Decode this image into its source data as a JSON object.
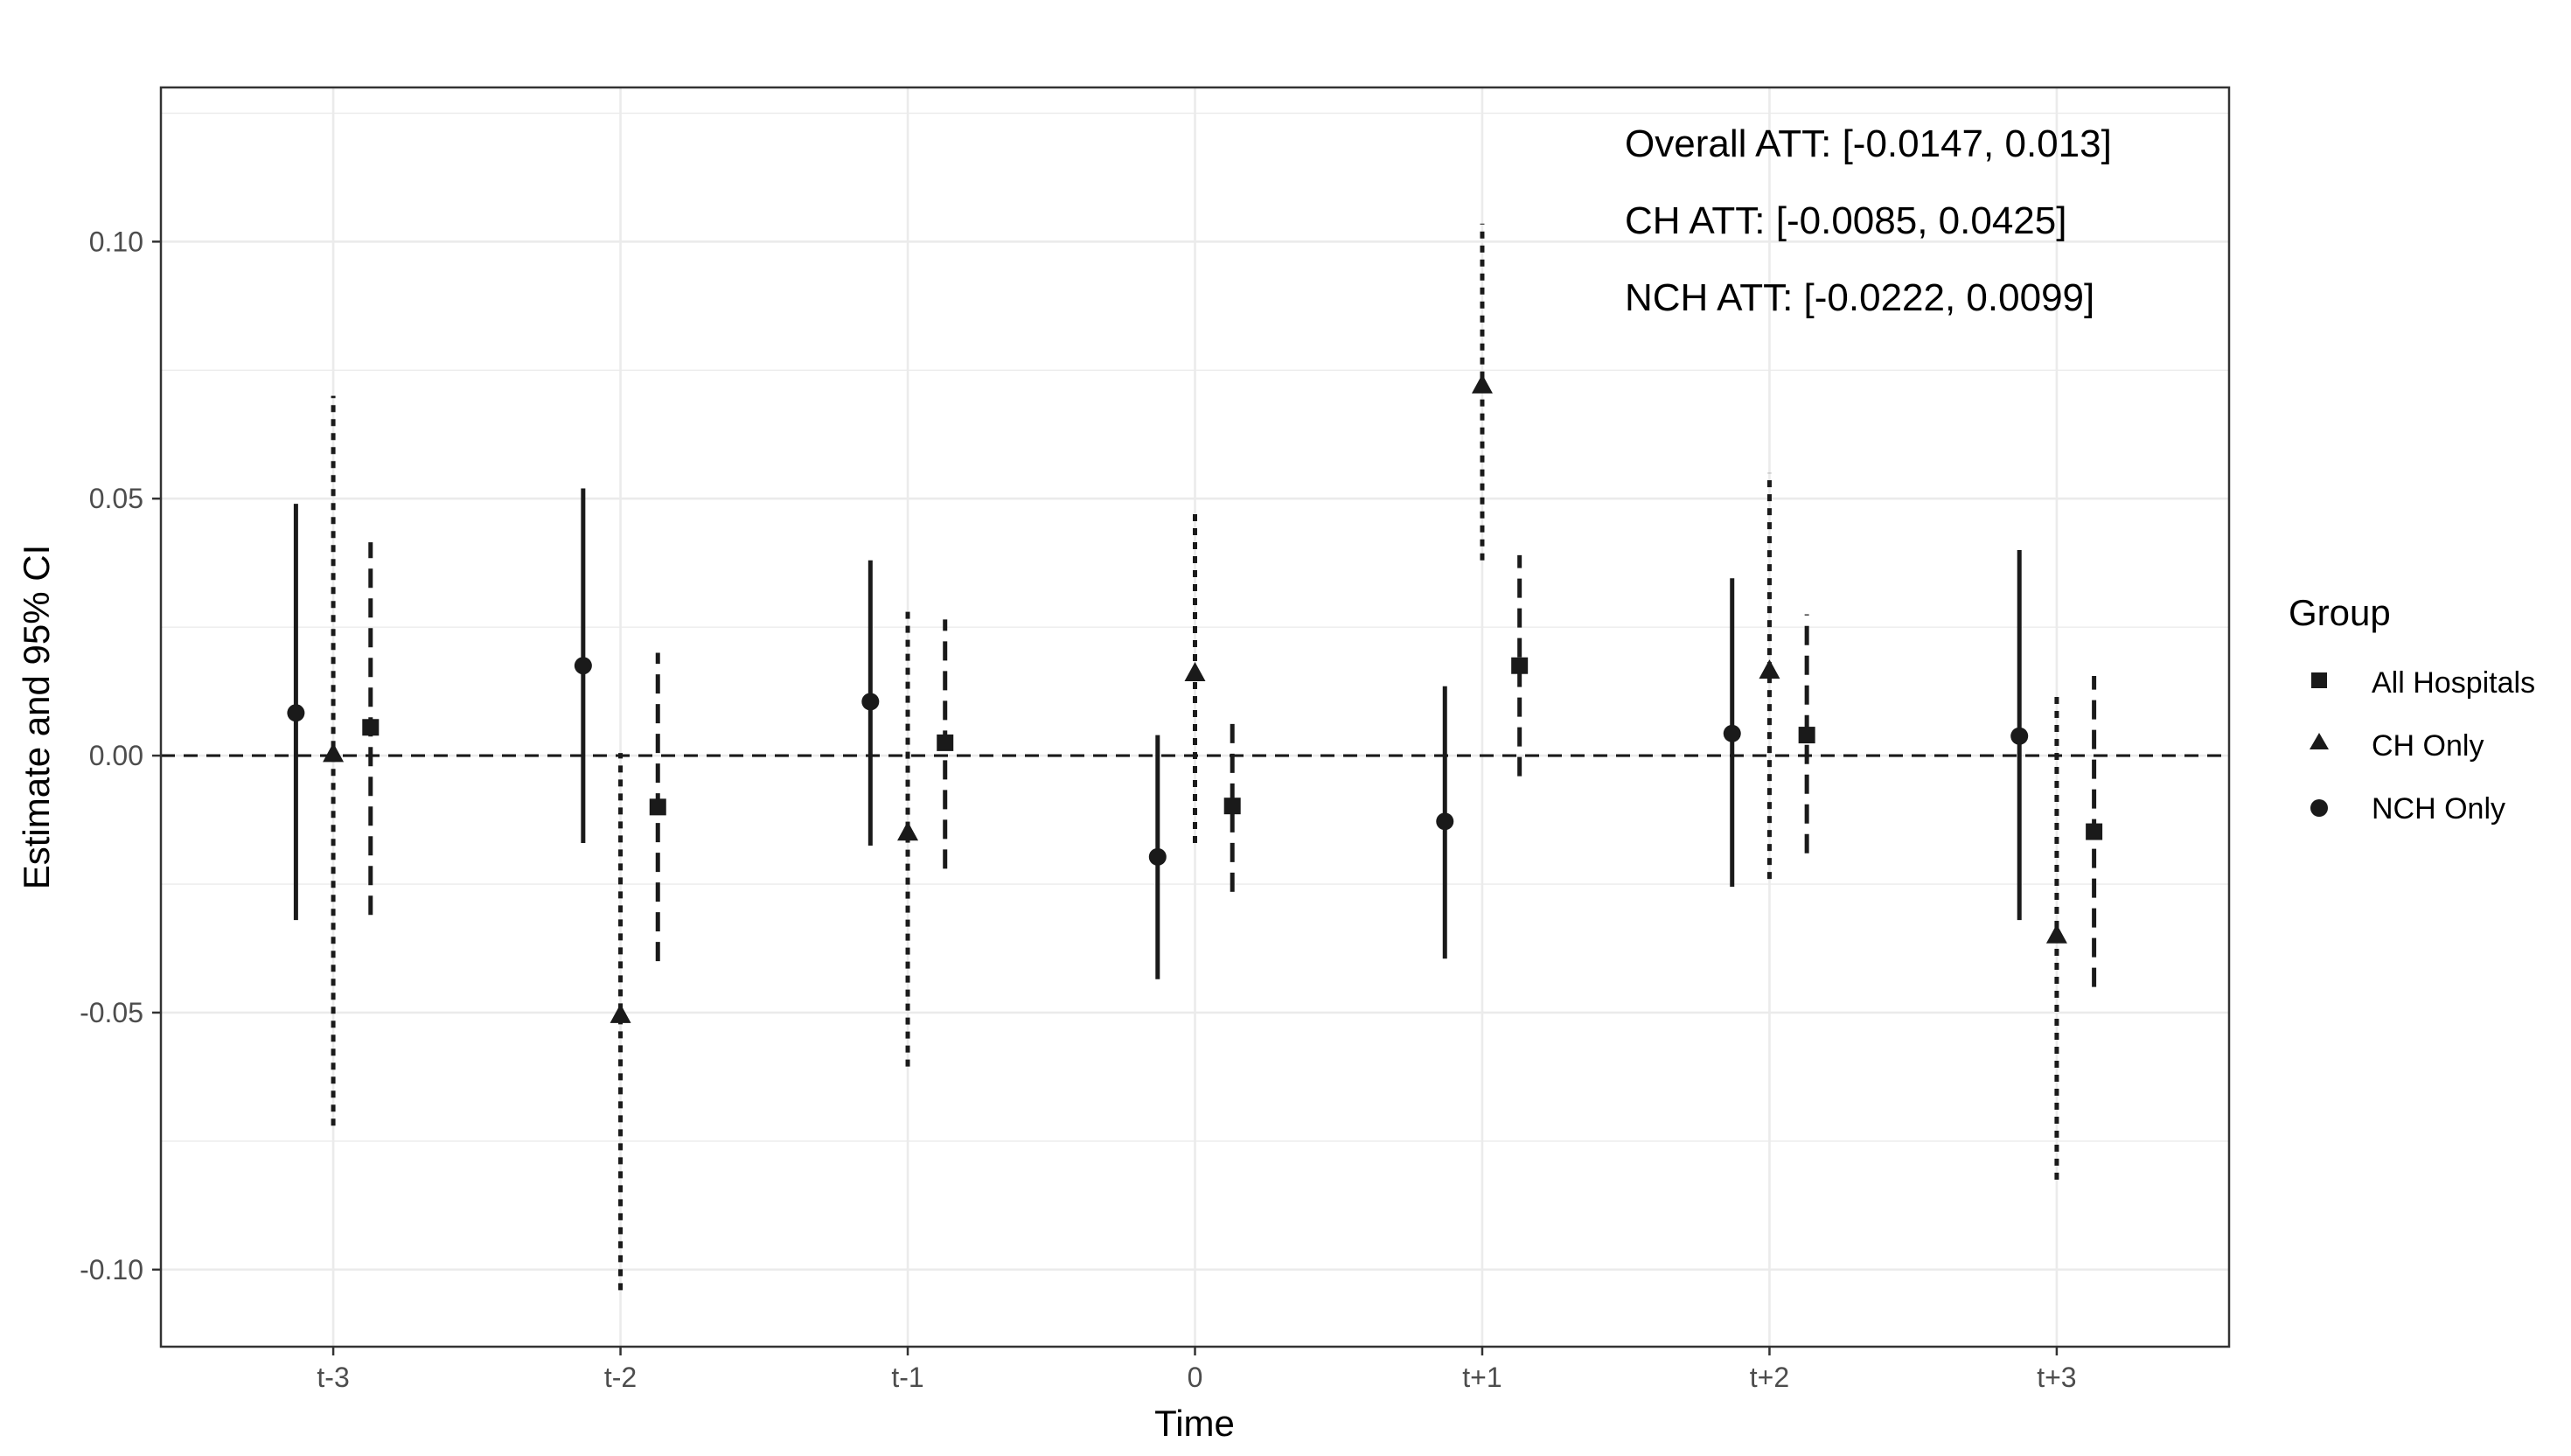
{
  "chart_data": {
    "type": "scatter",
    "subtype": "point-with-error-bars",
    "title": "",
    "xlabel": "Time",
    "ylabel": "Estimate and 95% CI",
    "categories": [
      "t-3",
      "t-2",
      "t-1",
      "0",
      "t+1",
      "t+2",
      "t+3"
    ],
    "ylim": [
      -0.115,
      0.13
    ],
    "yticks": [
      -0.1,
      -0.05,
      0.0,
      0.05,
      0.1
    ],
    "ytick_labels": [
      "-0.10",
      "-0.05",
      "0.00",
      "0.05",
      "0.10"
    ],
    "grid": true,
    "reference_line": {
      "y": 0,
      "style": "dashed"
    },
    "legend": {
      "title": "Group",
      "position": "right",
      "entries": [
        {
          "label": "All Hospitals",
          "shape": "square"
        },
        {
          "label": "CH Only",
          "shape": "triangle"
        },
        {
          "label": "NCH Only",
          "shape": "circle"
        }
      ]
    },
    "annotations": [
      "Overall ATT: [-0.0147, 0.013]",
      "CH ATT: [-0.0085, 0.0425]",
      "NCH ATT: [-0.0222, 0.0099]"
    ],
    "series": [
      {
        "name": "NCH Only",
        "shape": "circle",
        "line": "solid",
        "offset": -0.13,
        "estimate": [
          0.0083,
          0.0175,
          0.0105,
          -0.0197,
          -0.0128,
          0.0043,
          0.0038
        ],
        "lower": [
          -0.032,
          -0.017,
          -0.0175,
          -0.0435,
          -0.0395,
          -0.0255,
          -0.032
        ],
        "upper": [
          0.049,
          0.052,
          0.038,
          0.004,
          0.0135,
          0.0345,
          0.04
        ]
      },
      {
        "name": "CH Only",
        "shape": "triangle",
        "line": "dotted",
        "offset": 0.0,
        "estimate": [
          0.0003,
          -0.0505,
          -0.015,
          0.016,
          0.072,
          0.0165,
          -0.035
        ],
        "lower": [
          -0.072,
          -0.104,
          -0.0605,
          -0.017,
          0.038,
          -0.024,
          -0.0825
        ],
        "upper": [
          0.07,
          0.0005,
          0.0285,
          0.047,
          0.1035,
          0.055,
          0.0115
        ]
      },
      {
        "name": "All Hospitals",
        "shape": "square",
        "line": "dashed",
        "offset": 0.13,
        "estimate": [
          0.0055,
          -0.01,
          0.0025,
          -0.0098,
          0.0175,
          0.004,
          -0.0148
        ],
        "lower": [
          -0.031,
          -0.04,
          -0.022,
          -0.0265,
          -0.004,
          -0.019,
          -0.045
        ],
        "upper": [
          0.0415,
          0.02,
          0.0265,
          0.0065,
          0.039,
          0.0275,
          0.0155
        ]
      }
    ],
    "colors": {
      "ink": "#1a1a1a",
      "grid": "#ebebeb",
      "panel_border": "#333333"
    }
  }
}
